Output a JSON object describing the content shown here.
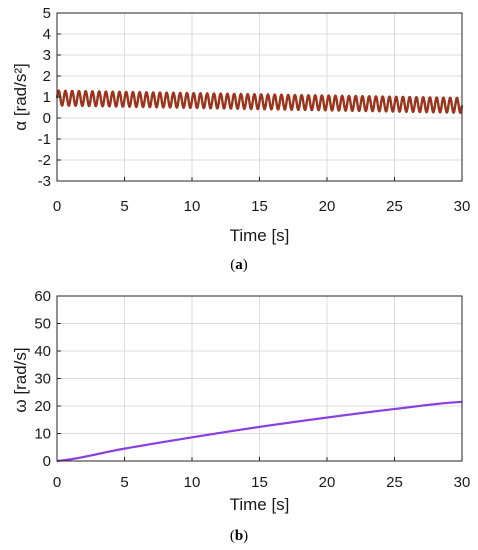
{
  "captions": {
    "a": {
      "open": "(",
      "letter": "a",
      "close": ")"
    },
    "b": {
      "open": "(",
      "letter": "b",
      "close": ")"
    }
  },
  "colors": {
    "alpha_line": "#cc1f1f",
    "alpha_line_dark": "#5a4a10",
    "omega_line": "#8a3fe0",
    "grid": "#dcdcdc",
    "axis": "#262626"
  },
  "chart_data": [
    {
      "type": "line",
      "panel": "a",
      "title": "",
      "xlabel": "Time [s]",
      "ylabel": "α [rad/s²]",
      "xlim": [
        0,
        30
      ],
      "ylim": [
        -3,
        5
      ],
      "xticks": [
        0,
        5,
        10,
        15,
        20,
        25,
        30
      ],
      "yticks": [
        -3,
        -2,
        -1,
        0,
        1,
        2,
        3,
        4,
        5
      ],
      "grid": true,
      "series": [
        {
          "oscillation": {
            "cycles": 60,
            "center_start": 0.95,
            "center_end": 0.6,
            "amplitude_start": 0.35,
            "amplitude_end": 0.35
          }
        }
      ]
    },
    {
      "type": "line",
      "panel": "b",
      "title": "",
      "xlabel": "Time [s]",
      "ylabel": "ω [rad/s]",
      "xlim": [
        0,
        30
      ],
      "ylim": [
        0,
        60
      ],
      "xticks": [
        0,
        5,
        10,
        15,
        20,
        25,
        30
      ],
      "yticks": [
        0,
        10,
        20,
        30,
        40,
        50,
        60
      ],
      "grid": true,
      "series": [
        {
          "x": [
            0,
            5,
            10,
            15,
            20,
            25,
            30
          ],
          "y": [
            0,
            4.5,
            8.6,
            12.4,
            15.8,
            18.9,
            21.5
          ]
        }
      ]
    }
  ]
}
